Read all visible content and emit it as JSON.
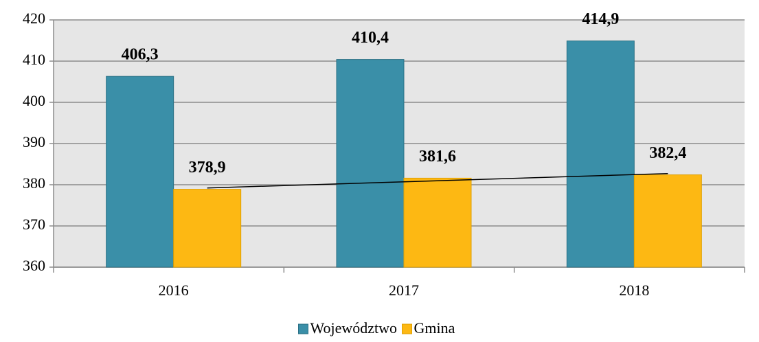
{
  "chart_data": {
    "type": "bar",
    "categories": [
      "2016",
      "2017",
      "2018"
    ],
    "series": [
      {
        "name": "Województwo",
        "color": "#3a8fa8",
        "values": [
          406.3,
          410.4,
          414.9
        ],
        "value_labels": [
          "406,3",
          "410,4",
          "414,9"
        ]
      },
      {
        "name": "Gmina",
        "color": "#fdb813",
        "values": [
          378.9,
          381.6,
          382.4
        ],
        "value_labels": [
          "378,9",
          "381,6",
          "382,4"
        ],
        "trendline": "linear"
      }
    ],
    "ylim": [
      360,
      420
    ],
    "yticks": [
      360,
      370,
      380,
      390,
      400,
      410,
      420
    ],
    "grid": true,
    "legend": "bottom"
  }
}
